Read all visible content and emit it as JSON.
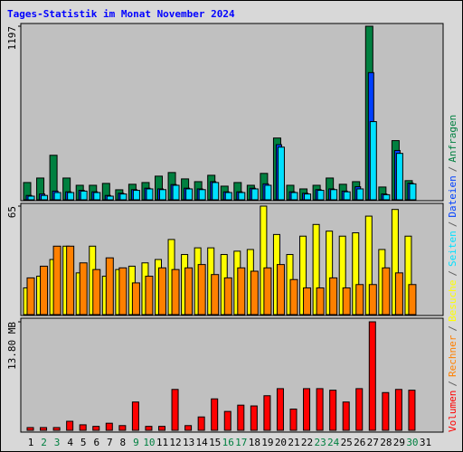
{
  "chart_data": {
    "type": "bar",
    "title": "Tages-Statistik im Monat November 2024",
    "categories": [
      "1",
      "2",
      "3",
      "4",
      "5",
      "6",
      "7",
      "8",
      "9",
      "10",
      "11",
      "12",
      "13",
      "14",
      "15",
      "16",
      "17",
      "18",
      "19",
      "20",
      "21",
      "22",
      "23",
      "24",
      "25",
      "26",
      "27",
      "28",
      "29",
      "30",
      "31"
    ],
    "category_colors": [
      "#000000",
      "#008040",
      "#008040",
      "#000000",
      "#000000",
      "#000000",
      "#000000",
      "#000000",
      "#008040",
      "#008040",
      "#000000",
      "#000000",
      "#000000",
      "#000000",
      "#000000",
      "#008040",
      "#008040",
      "#000000",
      "#000000",
      "#000000",
      "#000000",
      "#000000",
      "#008040",
      "#008040",
      "#000000",
      "#000000",
      "#000000",
      "#000000",
      "#000000",
      "#008040",
      "#000000"
    ],
    "separator": "/",
    "panels": [
      {
        "ylim": [
          0,
          1197
        ],
        "yticks": [
          1197
        ],
        "series": [
          {
            "name": "Anfragen",
            "color": "#008040",
            "values": [
              119,
              150,
              307,
              150,
              100,
              100,
              113,
              69,
              107,
              119,
              163,
              188,
              144,
              125,
              169,
              94,
              119,
              100,
              182,
              426,
              100,
              75,
              100,
              150,
              107,
              125,
              1197,
              88,
              408,
              132,
              0
            ]
          },
          {
            "name": "Dateien",
            "color": "#0040ff",
            "values": [
              30,
              40,
              60,
              55,
              65,
              55,
              30,
              45,
              70,
              80,
              75,
              105,
              80,
              75,
              125,
              55,
              55,
              80,
              110,
              380,
              55,
              45,
              70,
              75,
              60,
              90,
              877,
              40,
              340,
              115,
              0
            ]
          },
          {
            "name": "Seiten",
            "color": "#00e0ff",
            "values": [
              25,
              30,
              50,
              50,
              60,
              50,
              25,
              40,
              65,
              75,
              70,
              100,
              75,
              70,
              119,
              50,
              50,
              75,
              100,
              363,
              50,
              40,
              65,
              70,
              55,
              75,
              539,
              35,
              320,
              110,
              0
            ]
          }
        ]
      },
      {
        "ylim": [
          0,
          65
        ],
        "yticks": [
          65
        ],
        "series": [
          {
            "name": "Besuche",
            "color": "#ffff00",
            "values": [
              16,
              23,
              33,
              41,
              25,
              41,
              23,
              27,
              29,
              31,
              33,
              45,
              36,
              40,
              40,
              36,
              38,
              39,
              65,
              48,
              36,
              47,
              54,
              50,
              47,
              49,
              59,
              39,
              63,
              47,
              0
            ]
          },
          {
            "name": "Rechner",
            "color": "#ff8000",
            "values": [
              22,
              29,
              41,
              41,
              31,
              27,
              34,
              28,
              19,
              23,
              28,
              27,
              28,
              30,
              24,
              22,
              28,
              26,
              28,
              30,
              21,
              16,
              16,
              22,
              16,
              18,
              18,
              28,
              25,
              18,
              0
            ]
          }
        ]
      },
      {
        "ylim": [
          0,
          13.8
        ],
        "yticks": [
          {
            "value": 13.8,
            "label": "13.80 MB"
          }
        ],
        "series": [
          {
            "name": "Volumen",
            "color": "#ff0000",
            "values": [
              0.35,
              0.35,
              0.35,
              1.15,
              0.7,
              0.5,
              0.9,
              0.6,
              3.6,
              0.5,
              0.5,
              5.2,
              0.6,
              1.7,
              4.0,
              2.4,
              3.2,
              3.1,
              4.4,
              5.3,
              2.7,
              5.3,
              5.3,
              5.1,
              3.6,
              5.3,
              13.8,
              4.8,
              5.2,
              5.1,
              0
            ]
          }
        ]
      }
    ]
  }
}
